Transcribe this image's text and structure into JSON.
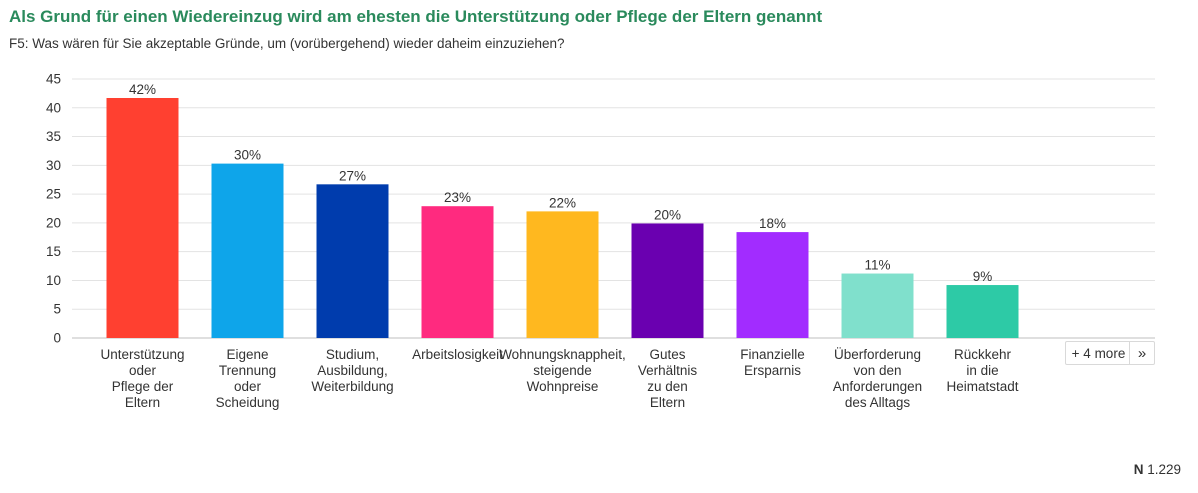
{
  "header": {
    "title": "Als Grund für einen Wiedereinzug wird am ehesten die Unterstützung oder Pflege der Eltern genannt",
    "subtitle": "F5: Was wären für Sie akzeptable Gründe, um (vorübergehend) wieder daheim einzuziehen?"
  },
  "chart_data": {
    "type": "bar",
    "categories": [
      [
        "Unterstützung",
        "oder",
        "Pflege der",
        "Eltern"
      ],
      [
        "Eigene",
        "Trennung",
        "oder",
        "Scheidung"
      ],
      [
        "Studium,",
        "Ausbildung,",
        "Weiterbildung"
      ],
      [
        "Arbeitslosigkeit"
      ],
      [
        "Wohnungsknappheit,",
        "steigende",
        "Wohnpreise"
      ],
      [
        "Gutes",
        "Verhältnis",
        "zu den",
        "Eltern"
      ],
      [
        "Finanzielle",
        "Ersparnis"
      ],
      [
        "Überforderung",
        "von den",
        "Anforderungen",
        "des Alltags"
      ],
      [
        "Rückkehr",
        "in die",
        "Heimatstadt"
      ]
    ],
    "values": [
      41.7,
      30.3,
      26.7,
      22.9,
      22.0,
      19.9,
      18.4,
      11.2,
      9.2
    ],
    "value_labels": [
      "42%",
      "30%",
      "27%",
      "23%",
      "22%",
      "20%",
      "18%",
      "11%",
      "9%"
    ],
    "colors": [
      "#ff4030",
      "#0ea5ea",
      "#003cad",
      "#ff2a7f",
      "#ffb81f",
      "#6a00b0",
      "#a22cff",
      "#80e0cc",
      "#2dcaa6"
    ],
    "ylim": [
      0,
      45
    ],
    "yticks": [
      0,
      5,
      10,
      15,
      20,
      25,
      30,
      35,
      40,
      45
    ],
    "grid": true,
    "legend": "none"
  },
  "controls": {
    "more_label": "+ 4 more",
    "more_icon": "double-chevron-right-icon",
    "more_glyph": "»"
  },
  "footer": {
    "n_label": "N",
    "n_value": "1.229"
  }
}
